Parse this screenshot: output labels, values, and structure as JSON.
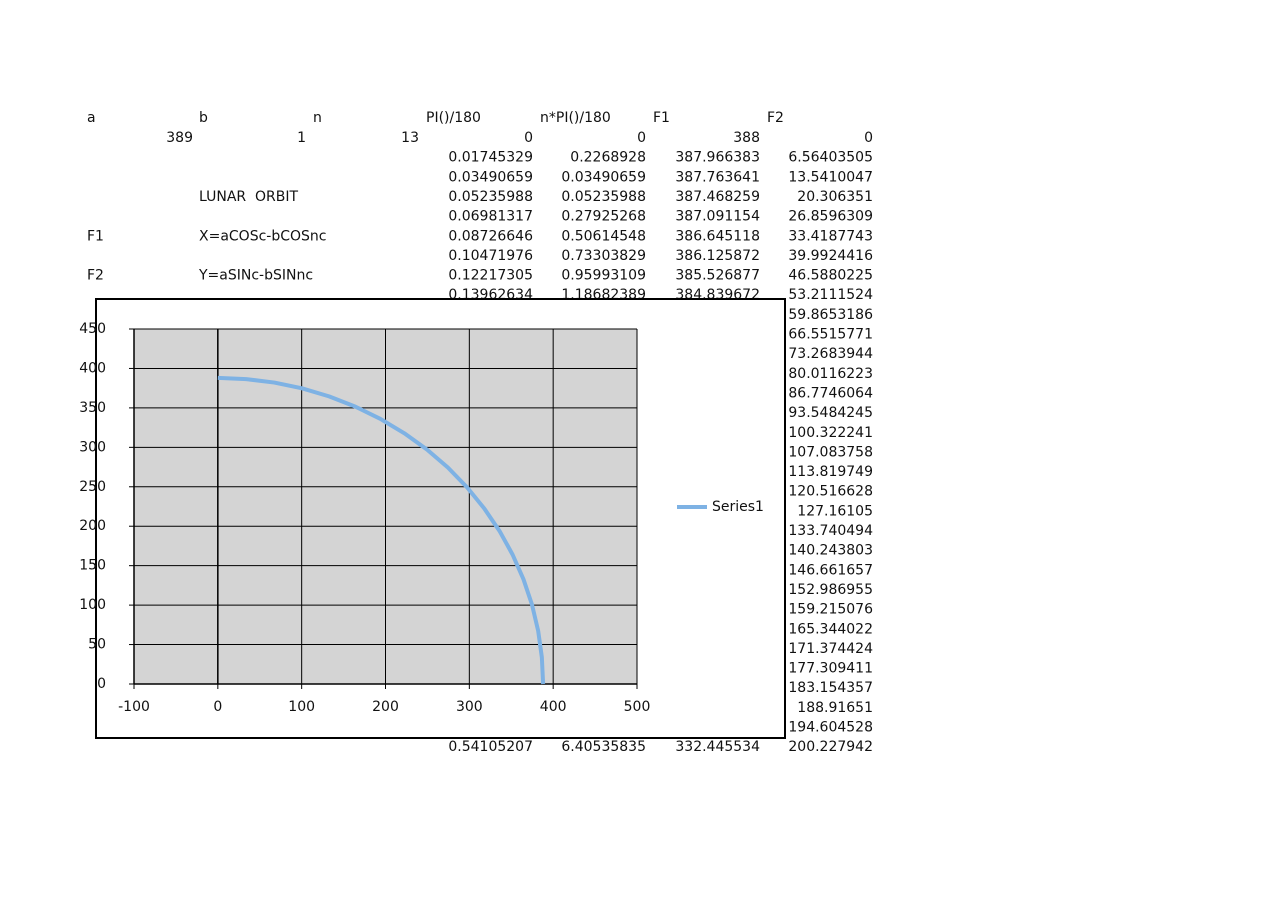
{
  "sheet": {
    "headers": [
      "a",
      "b",
      "n",
      "PI()/180",
      "n*PI()/180",
      "F1",
      "F2"
    ],
    "title": "LUNAR  ORBIT",
    "notes": [
      {
        "label": "F1",
        "text": "X=aCOSc-bCOSnc"
      },
      {
        "label": "F2",
        "text": "Y=aSINc-bSINnc"
      }
    ],
    "rows": [
      [
        389,
        1,
        13,
        0,
        0,
        388,
        0
      ],
      [
        null,
        null,
        null,
        0.01745329,
        0.2268928,
        387.966383,
        6.56403505
      ],
      [
        null,
        null,
        null,
        0.03490659,
        0.03490659,
        387.763641,
        13.5410047
      ],
      [
        null,
        null,
        null,
        0.05235988,
        0.05235988,
        387.468259,
        20.306351
      ],
      [
        null,
        null,
        null,
        0.06981317,
        0.27925268,
        387.091154,
        26.8596309
      ],
      [
        null,
        null,
        null,
        0.08726646,
        0.50614548,
        386.645118,
        33.4187743
      ],
      [
        null,
        null,
        null,
        0.10471976,
        0.73303829,
        386.125872,
        39.9924416
      ],
      [
        null,
        null,
        null,
        0.12217305,
        0.95993109,
        385.526877,
        46.5880225
      ],
      [
        null,
        null,
        null,
        0.13962634,
        1.18682389,
        384.839672,
        53.2111524
      ],
      [
        null,
        null,
        null,
        null,
        null,
        null,
        59.8653186
      ],
      [
        null,
        null,
        null,
        null,
        null,
        null,
        66.5515771
      ],
      [
        null,
        null,
        null,
        null,
        null,
        null,
        73.2683944
      ],
      [
        null,
        null,
        null,
        null,
        null,
        null,
        80.0116223
      ],
      [
        null,
        null,
        null,
        null,
        null,
        null,
        86.7746064
      ],
      [
        null,
        null,
        null,
        null,
        null,
        null,
        93.5484245
      ],
      [
        null,
        null,
        null,
        null,
        null,
        null,
        100.322241
      ],
      [
        null,
        null,
        null,
        null,
        null,
        null,
        107.083758
      ],
      [
        null,
        null,
        null,
        null,
        null,
        null,
        113.819749
      ],
      [
        null,
        null,
        null,
        null,
        null,
        null,
        120.516628
      ],
      [
        null,
        null,
        null,
        null,
        null,
        null,
        127.16105
      ],
      [
        null,
        null,
        null,
        null,
        null,
        null,
        133.740494
      ],
      [
        null,
        null,
        null,
        null,
        null,
        null,
        140.243803
      ],
      [
        null,
        null,
        null,
        null,
        null,
        null,
        146.661657
      ],
      [
        null,
        null,
        null,
        null,
        null,
        null,
        152.986955
      ],
      [
        null,
        null,
        null,
        null,
        null,
        null,
        159.215076
      ],
      [
        null,
        null,
        null,
        null,
        null,
        null,
        165.344022
      ],
      [
        null,
        null,
        null,
        null,
        null,
        null,
        171.374424
      ],
      [
        null,
        null,
        null,
        null,
        null,
        null,
        177.309411
      ],
      [
        null,
        null,
        null,
        null,
        null,
        null,
        183.154357
      ],
      [
        null,
        null,
        null,
        null,
        null,
        null,
        188.91651
      ],
      [
        null,
        null,
        null,
        null,
        null,
        null,
        194.604528
      ],
      [
        null,
        null,
        null,
        0.54105207,
        6.40535835,
        332.445534,
        200.227942
      ]
    ]
  },
  "chart_data": {
    "type": "line",
    "series": [
      {
        "name": "Series1",
        "color": "#7eb2e4",
        "x": [
          388,
          386.5,
          382.1,
          374.8,
          364.6,
          351.6,
          336.0,
          317.8,
          297.2,
          274.4,
          249.4,
          222.5,
          194.0,
          164.0,
          132.7,
          100.4,
          67.4,
          33.8,
          0
        ],
        "values": [
          0,
          33.8,
          67.4,
          100.4,
          132.7,
          164.0,
          194.0,
          222.5,
          249.4,
          274.4,
          297.2,
          317.8,
          336.0,
          351.6,
          364.6,
          374.8,
          382.1,
          386.5,
          388
        ]
      }
    ],
    "xlim": [
      -100,
      500
    ],
    "xticks": [
      -100,
      0,
      100,
      200,
      300,
      400,
      500
    ],
    "ylim": [
      0,
      450
    ],
    "yticks": [
      0,
      50,
      100,
      150,
      200,
      250,
      300,
      350,
      400,
      450
    ],
    "grid": true,
    "legend": "right"
  }
}
